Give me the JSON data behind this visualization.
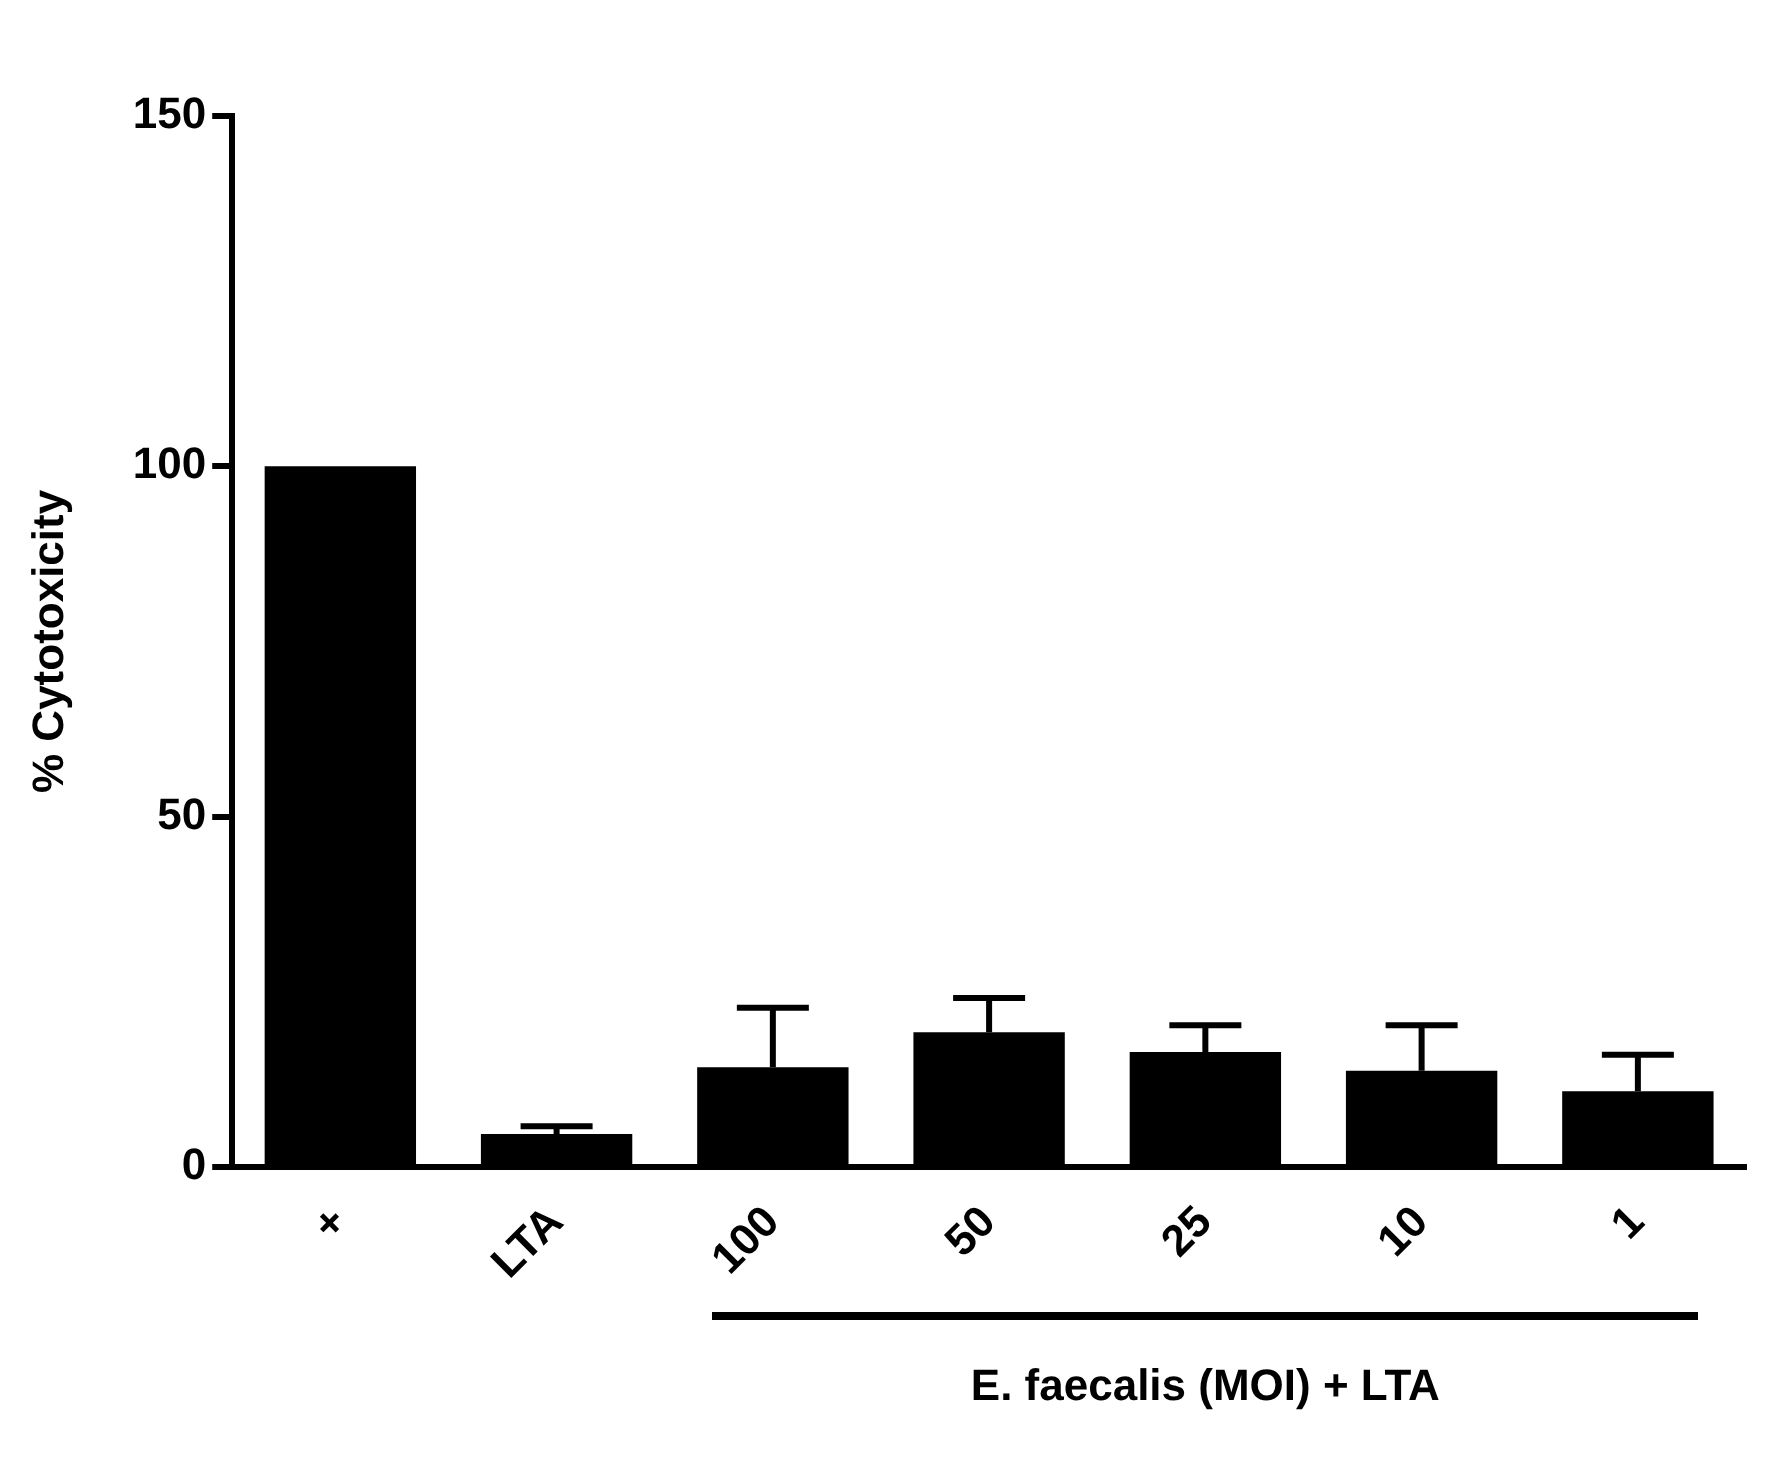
{
  "chart_data": {
    "type": "bar",
    "categories": [
      "+",
      "LTA",
      "100",
      "50",
      "25",
      "10",
      "1"
    ],
    "series": [
      {
        "color": "#000000",
        "values": [
          100,
          4.7,
          14.2,
          19.2,
          16.4,
          13.7,
          10.8
        ],
        "errors": [
          null,
          [
            4.7,
            5.8
          ],
          [
            14.2,
            22.7
          ],
          [
            19.2,
            24.1
          ],
          [
            16.4,
            20.2
          ],
          [
            13.7,
            20.2
          ],
          [
            10.8,
            16.0
          ]
        ]
      }
    ],
    "ylabel": "% Cytotoxicity",
    "xlabel": "E. faecalis (MOI) + LTA",
    "ylim": [
      0,
      150
    ],
    "yticks": [
      0,
      50,
      100,
      150
    ],
    "grid": false,
    "legend": false
  }
}
